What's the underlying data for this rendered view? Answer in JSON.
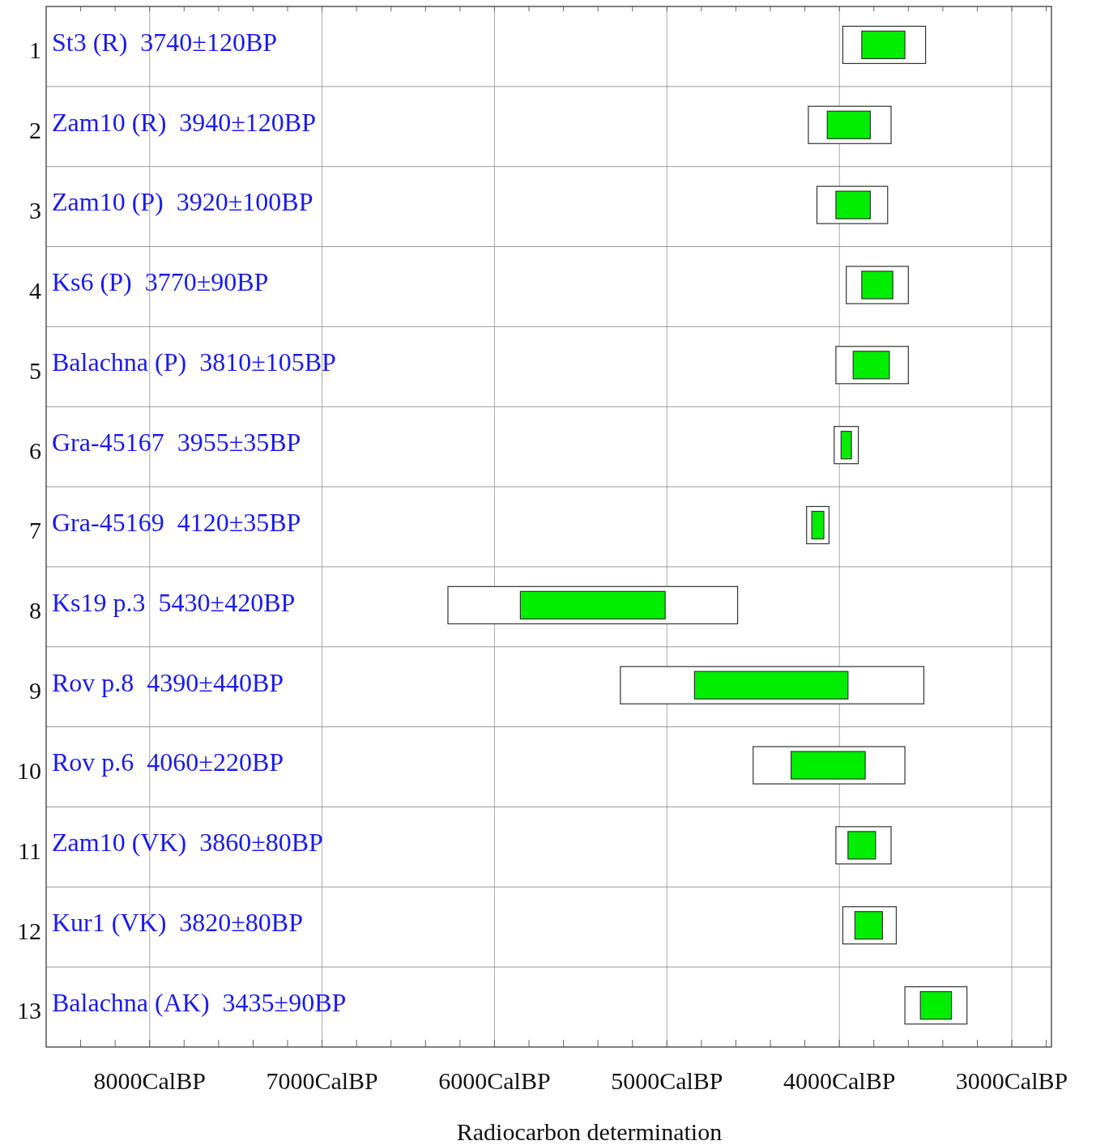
{
  "chart_data": {
    "type": "bar",
    "orientation": "horizontal",
    "xlabel": "Radiocarbon determination",
    "categories": [
      "1",
      "2",
      "3",
      "4",
      "5",
      "6",
      "7",
      "8",
      "9",
      "10",
      "11",
      "12",
      "13"
    ],
    "xlim": [
      8600,
      2770
    ],
    "xticks": [
      {
        "value": 8400,
        "label": null
      },
      {
        "value": 8200,
        "label": null
      },
      {
        "value": 8000,
        "label": "8000CalBP"
      },
      {
        "value": 7800,
        "label": null
      },
      {
        "value": 7600,
        "label": null
      },
      {
        "value": 7400,
        "label": null
      },
      {
        "value": 7200,
        "label": null
      },
      {
        "value": 7000,
        "label": "7000CalBP"
      },
      {
        "value": 6800,
        "label": null
      },
      {
        "value": 6600,
        "label": null
      },
      {
        "value": 6400,
        "label": null
      },
      {
        "value": 6200,
        "label": null
      },
      {
        "value": 6000,
        "label": "6000CalBP"
      },
      {
        "value": 5800,
        "label": null
      },
      {
        "value": 5600,
        "label": null
      },
      {
        "value": 5400,
        "label": null
      },
      {
        "value": 5200,
        "label": null
      },
      {
        "value": 5000,
        "label": "5000CalBP"
      },
      {
        "value": 4800,
        "label": null
      },
      {
        "value": 4600,
        "label": null
      },
      {
        "value": 4400,
        "label": null
      },
      {
        "value": 4200,
        "label": null
      },
      {
        "value": 4000,
        "label": "4000CalBP"
      },
      {
        "value": 3800,
        "label": null
      },
      {
        "value": 3600,
        "label": null
      },
      {
        "value": 3400,
        "label": null
      },
      {
        "value": 3200,
        "label": null
      },
      {
        "value": 3000,
        "label": "3000CalBP"
      },
      {
        "value": 2800,
        "label": null
      }
    ],
    "grid": "x",
    "series": [
      {
        "color": "#ffffff",
        "base": [
          3500,
          3700,
          3720,
          3600,
          3600,
          3890,
          4060,
          4590,
          3510,
          3620,
          3700,
          3670,
          3260
        ],
        "values": [
          480,
          480,
          410,
          360,
          420,
          140,
          130,
          1680,
          1760,
          880,
          320,
          310,
          360
        ]
      },
      {
        "color": "#00ee00",
        "base": [
          3620,
          3820,
          3820,
          3690,
          3710,
          3930,
          4090,
          5010,
          3950,
          3850,
          3790,
          3750,
          3350
        ],
        "values": [
          250,
          250,
          200,
          180,
          210,
          60,
          70,
          840,
          890,
          430,
          160,
          160,
          180
        ]
      }
    ],
    "annotations": [
      "St3 (R)  3740±120BP",
      "Zam10 (R)  3940±120BP",
      "Zam10 (P)  3920±100BP",
      "Ks6 (P)  3770±90BP",
      "Balachna (P)  3810±105BP",
      "Gra-45167  3955±35BP",
      "Gra-45169  4120±35BP",
      "Ks19 p.3  5430±420BP",
      "Rov p.8  4390±440BP",
      "Rov p.6  4060±220BP",
      "Zam10 (VK)  3860±80BP",
      "Kur1 (VK)  3820±80BP",
      "Balachna (AK)  3435±90BP"
    ]
  }
}
